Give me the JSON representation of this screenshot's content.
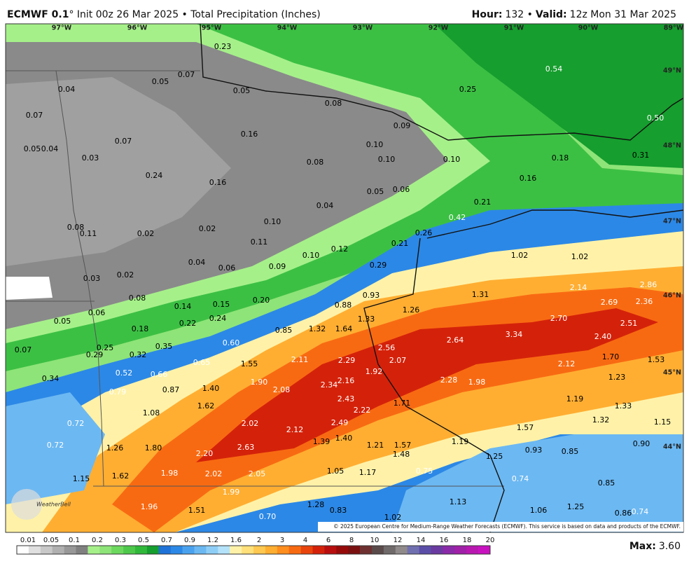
{
  "header": {
    "model": "ECMWF 0.1",
    "title": "° Init 00z 26 Mar 2025 • Total Precipitation (Inches)",
    "hour_label": "Hour:",
    "hour": "132 •",
    "valid_label": "Valid:",
    "valid": "12z Mon 31 Mar 2025"
  },
  "longitudes": [
    "97°W",
    "96°W",
    "95°W",
    "94°W",
    "93°W",
    "92°W",
    "91°W",
    "90°W",
    "89°W"
  ],
  "latitudes": [
    "49°N",
    "48°N",
    "47°N",
    "46°N",
    "45°N",
    "44°N"
  ],
  "points": [
    "0.23",
    "0.07",
    "0.05",
    "0.04",
    "0.05",
    "0.08",
    "0.25",
    "0.54",
    "0.07",
    "0.09",
    "0.16",
    "0.07",
    "0.05",
    "0.04",
    "0.10",
    "0.50",
    "0.03",
    "0.08",
    "0.10",
    "0.10",
    "0.18",
    "0.31",
    "0.24",
    "0.16",
    "0.16",
    "0.05",
    "0.06",
    "0.04",
    "0.21",
    "0.42",
    "0.08",
    "0.11",
    "0.02",
    "0.02",
    "0.10",
    "0.26",
    "0.11",
    "0.12",
    "0.21",
    "1.02",
    "1.02",
    "0.04",
    "0.06",
    "0.09",
    "0.10",
    "0.29",
    "0.03",
    "0.02",
    "0.93",
    "1.31",
    "2.14",
    "2.86",
    "0.08",
    "0.14",
    "0.15",
    "0.20",
    "0.88",
    "1.26",
    "2.69",
    "2.36",
    "0.06",
    "0.05",
    "0.24",
    "0.22",
    "0.18",
    "0.85",
    "1.32",
    "1.64",
    "1.33",
    "2.70",
    "2.51",
    "3.34",
    "2.40",
    "2.64",
    "0.07",
    "0.25",
    "0.35",
    "0.60",
    "2.56",
    "0.29",
    "0.32",
    "1.70",
    "1.53",
    "0.65",
    "1.55",
    "2.11",
    "2.29",
    "2.07",
    "2.12",
    "0.52",
    "0.66",
    "1.92",
    "0.34",
    "1.90",
    "2.34",
    "2.16",
    "2.28",
    "1.98",
    "1.23",
    "0.87",
    "1.40",
    "2.08",
    "0.79",
    "2.43",
    "1.71",
    "1.19",
    "1.62",
    "2.22",
    "1.33",
    "1.08",
    "2.02",
    "2.49",
    "1.32",
    "1.15",
    "0.72",
    "2.12",
    "1.57",
    "0.72",
    "1.26",
    "1.80",
    "2.63",
    "1.39",
    "1.40",
    "1.21",
    "1.57",
    "1.19",
    "0.90",
    "0.93",
    "0.85",
    "2.20",
    "1.48",
    "1.25",
    "1.15",
    "1.62",
    "1.98",
    "2.02",
    "2.05",
    "1.05",
    "1.17",
    "0.75",
    "0.74",
    "0.85",
    "1.99",
    "1.96",
    "1.51",
    "1.28",
    "0.83",
    "1.13",
    "1.06",
    "1.25",
    "0.86",
    "0.74",
    "0.70",
    "1.02"
  ],
  "colorbar": {
    "labels": [
      "0.01",
      "0.05",
      "0.1",
      "0.2",
      "0.3",
      "0.5",
      "0.7",
      "0.9",
      "1.2",
      "1.6",
      "2",
      "3",
      "4",
      "6",
      "8",
      "10",
      "12",
      "14",
      "16",
      "18",
      "20"
    ],
    "colors": [
      "#ffffff",
      "#e0e0e0",
      "#c8c8c8",
      "#b0b0b0",
      "#989898",
      "#808080",
      "#a6f08a",
      "#8ee478",
      "#6cd85e",
      "#4ec84a",
      "#30b83a",
      "#169e2e",
      "#1e72d8",
      "#2c88e6",
      "#4aa2ee",
      "#6cb8f2",
      "#8ecef6",
      "#b4e2fa",
      "#fff2a8",
      "#ffe07a",
      "#ffc850",
      "#ffae32",
      "#ff8e1e",
      "#f86a12",
      "#e8440c",
      "#d4220a",
      "#b80e0e",
      "#960a0a",
      "#7a1010",
      "#6e3030",
      "#5a4a4a",
      "#706a6a",
      "#908a8a",
      "#7070b0",
      "#5a4ea8",
      "#6a3aa0",
      "#8a2aa8",
      "#a020a8",
      "#b818b0",
      "#c812c0"
    ]
  },
  "max_label": "Max:",
  "max": "3.60",
  "credit": "© 2025 European Centre for Medium-Range Weather Forecasts (ECMWF). This service is based on data and products of the ECMWF.",
  "logo": "WeatherBell"
}
